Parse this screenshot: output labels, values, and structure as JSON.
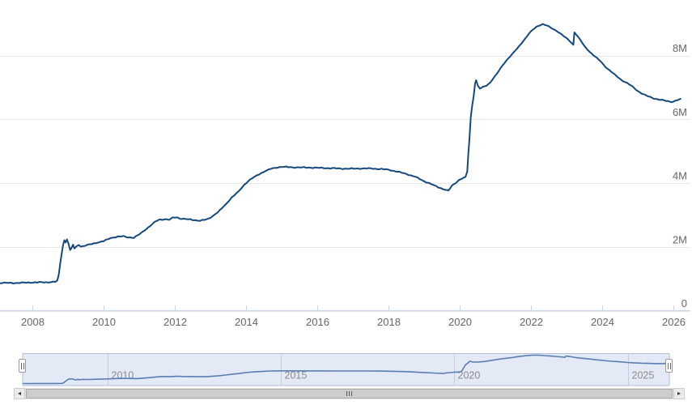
{
  "page": {
    "background": "#ffffff"
  },
  "colors": {
    "series": "#15497d",
    "grid": "#e6e6e6",
    "axis_line": "#ccd6eb",
    "tick": "#ccd6eb",
    "axis_label": "#666666",
    "navigator_mask": "#e3e9f5",
    "navigator_outline": "#b3bfd8",
    "navigator_grid": "#c3cbdd",
    "navigator_series": "#5a7eb2",
    "navigator_label": "#8c8c8c"
  },
  "icons": {
    "scrollbar_left_arrow": "◂",
    "scrollbar_right_arrow": "▸"
  },
  "chart_data": {
    "type": "line",
    "title": "",
    "xlabel": "",
    "ylabel": "",
    "grid": true,
    "legend": false,
    "x_axis": {
      "tick_years": [
        2008,
        2010,
        2012,
        2014,
        2016,
        2018,
        2020,
        2022,
        2024,
        2026
      ],
      "tick_labels": [
        "2008",
        "2010",
        "2012",
        "2014",
        "2016",
        "2018",
        "2020",
        "2022",
        "2024",
        "2026"
      ],
      "range_years": [
        2007.09,
        2026.48
      ]
    },
    "y_axis": {
      "units": "millions",
      "ticks": [
        {
          "value": 0,
          "label": "0"
        },
        {
          "value": 2000000,
          "label": "2M"
        },
        {
          "value": 4000000,
          "label": "4M"
        },
        {
          "value": 6000000,
          "label": "6M"
        },
        {
          "value": 8000000,
          "label": "8M"
        }
      ],
      "range": [
        0,
        9700000
      ]
    },
    "navigator": {
      "tick_years": [
        2010,
        2015,
        2020,
        2025
      ],
      "tick_labels": [
        "2010",
        "2015",
        "2020",
        "2025"
      ],
      "range_years": [
        2007.55,
        2026.2
      ],
      "value_range": [
        800000,
        9200000
      ]
    },
    "series": [
      {
        "points": [
          [
            2007.05,
            870000
          ],
          [
            2007.4,
            868000
          ],
          [
            2007.7,
            872000
          ],
          [
            2007.95,
            885000
          ],
          [
            2008.2,
            886000
          ],
          [
            2008.45,
            893000
          ],
          [
            2008.65,
            905000
          ],
          [
            2008.7,
            940000
          ],
          [
            2008.74,
            1120000
          ],
          [
            2008.78,
            1480000
          ],
          [
            2008.82,
            1770000
          ],
          [
            2008.86,
            2060000
          ],
          [
            2008.9,
            2210000
          ],
          [
            2008.93,
            2140000
          ],
          [
            2008.97,
            2240000
          ],
          [
            2009.02,
            2080000
          ],
          [
            2009.06,
            1900000
          ],
          [
            2009.1,
            1960000
          ],
          [
            2009.14,
            2070000
          ],
          [
            2009.18,
            1950000
          ],
          [
            2009.24,
            2010000
          ],
          [
            2009.3,
            2070000
          ],
          [
            2009.36,
            2010000
          ],
          [
            2009.45,
            2030000
          ],
          [
            2009.6,
            2070000
          ],
          [
            2009.8,
            2130000
          ],
          [
            2010.0,
            2180000
          ],
          [
            2010.2,
            2280000
          ],
          [
            2010.4,
            2320000
          ],
          [
            2010.55,
            2330000
          ],
          [
            2010.7,
            2300000
          ],
          [
            2010.85,
            2290000
          ],
          [
            2011.0,
            2390000
          ],
          [
            2011.15,
            2520000
          ],
          [
            2011.3,
            2650000
          ],
          [
            2011.45,
            2790000
          ],
          [
            2011.55,
            2850000
          ],
          [
            2011.7,
            2870000
          ],
          [
            2011.85,
            2850000
          ],
          [
            2011.95,
            2920000
          ],
          [
            2012.05,
            2930000
          ],
          [
            2012.15,
            2890000
          ],
          [
            2012.3,
            2870000
          ],
          [
            2012.5,
            2850000
          ],
          [
            2012.7,
            2820000
          ],
          [
            2012.9,
            2860000
          ],
          [
            2013.0,
            2920000
          ],
          [
            2013.2,
            3080000
          ],
          [
            2013.4,
            3300000
          ],
          [
            2013.6,
            3550000
          ],
          [
            2013.8,
            3750000
          ],
          [
            2013.95,
            3950000
          ],
          [
            2014.1,
            4100000
          ],
          [
            2014.3,
            4240000
          ],
          [
            2014.5,
            4360000
          ],
          [
            2014.7,
            4450000
          ],
          [
            2014.85,
            4490000
          ],
          [
            2015.0,
            4510000
          ],
          [
            2015.25,
            4500000
          ],
          [
            2015.5,
            4490000
          ],
          [
            2015.75,
            4490000
          ],
          [
            2016.0,
            4480000
          ],
          [
            2016.3,
            4470000
          ],
          [
            2016.6,
            4460000
          ],
          [
            2016.9,
            4450000
          ],
          [
            2017.2,
            4460000
          ],
          [
            2017.5,
            4460000
          ],
          [
            2017.8,
            4440000
          ],
          [
            2018.0,
            4420000
          ],
          [
            2018.25,
            4360000
          ],
          [
            2018.5,
            4290000
          ],
          [
            2018.75,
            4200000
          ],
          [
            2019.0,
            4060000
          ],
          [
            2019.2,
            3970000
          ],
          [
            2019.4,
            3870000
          ],
          [
            2019.6,
            3790000
          ],
          [
            2019.68,
            3760000
          ],
          [
            2019.78,
            3920000
          ],
          [
            2019.88,
            4000000
          ],
          [
            2019.98,
            4100000
          ],
          [
            2020.08,
            4160000
          ],
          [
            2020.16,
            4180000
          ],
          [
            2020.21,
            4360000
          ],
          [
            2020.24,
            4900000
          ],
          [
            2020.27,
            5350000
          ],
          [
            2020.31,
            6080000
          ],
          [
            2020.35,
            6430000
          ],
          [
            2020.39,
            6720000
          ],
          [
            2020.43,
            7130000
          ],
          [
            2020.46,
            7230000
          ],
          [
            2020.51,
            7050000
          ],
          [
            2020.57,
            6970000
          ],
          [
            2020.65,
            7010000
          ],
          [
            2020.75,
            7060000
          ],
          [
            2020.85,
            7150000
          ],
          [
            2020.95,
            7300000
          ],
          [
            2021.05,
            7440000
          ],
          [
            2021.2,
            7690000
          ],
          [
            2021.35,
            7900000
          ],
          [
            2021.5,
            8080000
          ],
          [
            2021.65,
            8270000
          ],
          [
            2021.8,
            8480000
          ],
          [
            2021.95,
            8700000
          ],
          [
            2022.05,
            8810000
          ],
          [
            2022.15,
            8900000
          ],
          [
            2022.25,
            8960000
          ],
          [
            2022.33,
            8990000
          ],
          [
            2022.45,
            8940000
          ],
          [
            2022.6,
            8850000
          ],
          [
            2022.75,
            8760000
          ],
          [
            2022.9,
            8630000
          ],
          [
            2023.05,
            8500000
          ],
          [
            2023.15,
            8390000
          ],
          [
            2023.19,
            8340000
          ],
          [
            2023.22,
            8730000
          ],
          [
            2023.28,
            8650000
          ],
          [
            2023.38,
            8500000
          ],
          [
            2023.5,
            8300000
          ],
          [
            2023.65,
            8120000
          ],
          [
            2023.8,
            7970000
          ],
          [
            2023.95,
            7830000
          ],
          [
            2024.1,
            7640000
          ],
          [
            2024.25,
            7500000
          ],
          [
            2024.4,
            7360000
          ],
          [
            2024.55,
            7230000
          ],
          [
            2024.7,
            7140000
          ],
          [
            2024.85,
            7030000
          ],
          [
            2025.0,
            6890000
          ],
          [
            2025.15,
            6790000
          ],
          [
            2025.3,
            6720000
          ],
          [
            2025.45,
            6660000
          ],
          [
            2025.6,
            6620000
          ],
          [
            2025.75,
            6590000
          ],
          [
            2025.9,
            6560000
          ],
          [
            2026.0,
            6560000
          ],
          [
            2026.1,
            6600000
          ],
          [
            2026.2,
            6630000
          ]
        ]
      }
    ]
  }
}
